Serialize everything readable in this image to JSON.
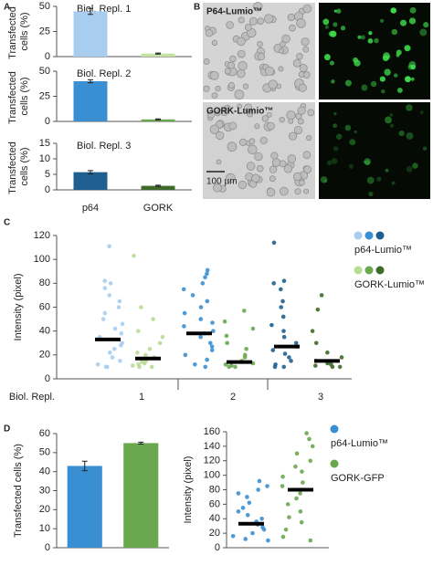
{
  "panel_labels": [
    "A",
    "B",
    "C",
    "D"
  ],
  "micrographs": {
    "labels": [
      "P64-Lumio™",
      "GORK-Lumio™"
    ],
    "scale_bar": "100 µm"
  },
  "chart_data": [
    {
      "type": "bar",
      "title": "Biol. Repl. 1",
      "ylabel": "Transfected cells (%)",
      "categories": [
        null,
        null
      ],
      "values": [
        45,
        3
      ],
      "errors": [
        3,
        0.5
      ],
      "colors": [
        "#a9cdee",
        "#c4e3a2"
      ],
      "ylim": [
        0,
        50
      ],
      "yticks": [
        0,
        25,
        50
      ]
    },
    {
      "type": "bar",
      "title": "Biol. Repl. 2",
      "ylabel": "Transfected cells (%)",
      "categories": [
        null,
        null
      ],
      "values": [
        40,
        2
      ],
      "errors": [
        1.5,
        0.5
      ],
      "colors": [
        "#3a8fd3",
        "#6aa84f"
      ],
      "ylim": [
        0,
        50
      ],
      "yticks": [
        0,
        25,
        50
      ]
    },
    {
      "type": "bar",
      "title": "Biol. Repl. 3",
      "ylabel": "Transfected cells (%)",
      "categories": [
        "p64",
        "GORK"
      ],
      "values": [
        5.7,
        1.3
      ],
      "errors": [
        0.5,
        0.2
      ],
      "colors": [
        "#1f5f8f",
        "#3f6b2a"
      ],
      "ylim": [
        0,
        15
      ],
      "yticks": [
        0,
        5,
        10,
        15
      ]
    },
    {
      "type": "strip",
      "ylabel": "Intensity (pixel)",
      "xlabel": "Biol. Repl.",
      "categories": [
        "1",
        "2",
        "3"
      ],
      "ylim": [
        0,
        120
      ],
      "yticks": [
        0,
        20,
        40,
        60,
        80,
        100,
        120
      ],
      "series": [
        {
          "name": "p64-Lumio™",
          "colors": [
            "#a9cdee",
            "#3a8fd3",
            "#1f5f8f"
          ],
          "means": [
            33,
            38,
            27
          ],
          "points": [
            [
              111,
              82,
              80,
              76,
              70,
              65,
              60,
              55,
              50,
              46,
              42,
              38,
              35,
              30,
              28,
              25,
              22,
              18,
              15,
              12,
              10,
              10
            ],
            [
              91,
              88,
              85,
              80,
              75,
              70,
              65,
              60,
              55,
              50,
              47,
              44,
              40,
              38,
              35,
              30,
              27,
              24,
              20,
              16,
              12,
              10
            ],
            [
              114,
              82,
              80,
              75,
              65,
              60,
              52,
              45,
              40,
              35,
              30,
              27,
              24,
              21,
              18,
              15,
              12,
              10,
              10
            ]
          ]
        },
        {
          "name": "GORK-Lumio™",
          "colors": [
            "#b9dc94",
            "#6aa84f",
            "#3f6b2a"
          ],
          "means": [
            17,
            14,
            15
          ],
          "points": [
            [
              103,
              60,
              50,
              40,
              35,
              30,
              25,
              22,
              20,
              18,
              16,
              15,
              14,
              13,
              12,
              11,
              10,
              10
            ],
            [
              57,
              48,
              42,
              36,
              30,
              25,
              20,
              18,
              15,
              13,
              12,
              11,
              10,
              10
            ],
            [
              70,
              58,
              40,
              30,
              22,
              18,
              15,
              13,
              12,
              11,
              10,
              10
            ]
          ]
        }
      ]
    },
    {
      "type": "bar",
      "ylabel": "Transfected cells (%)",
      "categories": [
        null,
        null
      ],
      "values": [
        43,
        55
      ],
      "errors": [
        2.5,
        0.5
      ],
      "colors": [
        "#3a8fd3",
        "#6aa84f"
      ],
      "ylim": [
        0,
        60
      ],
      "yticks": [
        0,
        10,
        20,
        30,
        40,
        50,
        60
      ]
    },
    {
      "type": "strip",
      "ylabel": "Intensity (pixel)",
      "categories": [
        null
      ],
      "ylim": [
        0,
        160
      ],
      "yticks": [
        0,
        20,
        40,
        60,
        80,
        100,
        120,
        140,
        160
      ],
      "series": [
        {
          "name": "p64-Lumio™",
          "colors": [
            "#3a8fd3"
          ],
          "means": [
            33
          ],
          "points": [
            [
              92,
              85,
              80,
              75,
              70,
              62,
              55,
              50,
              45,
              40,
              36,
              32,
              28,
              25,
              20,
              16,
              12,
              10
            ]
          ]
        },
        {
          "name": "GORK-GFP",
          "colors": [
            "#6aa84f"
          ],
          "means": [
            80
          ],
          "points": [
            [
              158,
              150,
              140,
              130,
              120,
              112,
              105,
              98,
              90,
              85,
              80,
              75,
              68,
              60,
              50,
              42,
              35,
              25,
              15,
              10
            ]
          ]
        }
      ]
    }
  ]
}
